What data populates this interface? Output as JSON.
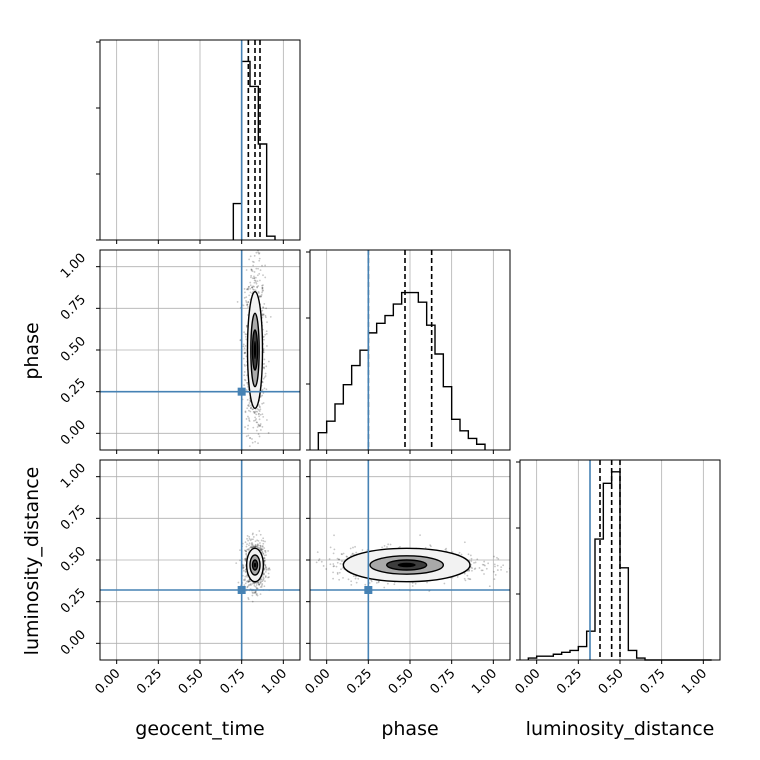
{
  "colors": {
    "truth": "#4682b4",
    "hist": "#000000",
    "quantile": "#000000",
    "grid": "#b0b0b0",
    "frame": "#000000",
    "density_dark": "#000000"
  },
  "chart_data": {
    "type": "corner",
    "grid": true,
    "parameters": [
      "geocent_time",
      "phase",
      "luminosity_distance"
    ],
    "axis_labels": {
      "x": [
        "geocent_time",
        "phase",
        "luminosity_distance"
      ],
      "y": [
        "phase",
        "luminosity_distance"
      ]
    },
    "range": [
      -0.1,
      1.1
    ],
    "ticks": [
      0.0,
      0.25,
      0.5,
      0.75,
      1.0
    ],
    "tick_labels": [
      "0.00",
      "0.25",
      "0.50",
      "0.75",
      "1.00"
    ],
    "truths": {
      "geocent_time": 0.75,
      "phase": 0.25,
      "luminosity_distance": 0.32
    },
    "histograms": [
      {
        "parameter": "geocent_time",
        "bin_start": 0.7,
        "bin_width": 0.05,
        "counts": [
          0.19,
          0.93,
          0.8,
          0.5,
          0.02
        ],
        "quantiles": [
          0.79,
          0.83,
          0.86
        ]
      },
      {
        "parameter": "phase",
        "bin_start": -0.05,
        "bin_width": 0.05,
        "counts": [
          0.09,
          0.15,
          0.24,
          0.34,
          0.44,
          0.52,
          0.61,
          0.66,
          0.7,
          0.76,
          0.82,
          0.82,
          0.77,
          0.65,
          0.5,
          0.33,
          0.16,
          0.1,
          0.06,
          0.03
        ],
        "quantiles": [
          0.25,
          0.47,
          0.63
        ]
      },
      {
        "parameter": "luminosity_distance",
        "bin_start": -0.05,
        "bin_width": 0.05,
        "counts": [
          0.01,
          0.02,
          0.02,
          0.03,
          0.04,
          0.05,
          0.07,
          0.15,
          0.63,
          0.92,
          0.98,
          0.48,
          0.05,
          0.01,
          0.0,
          0.0,
          0.0,
          0.0,
          0.0,
          0.0,
          0.0,
          0.0
        ],
        "quantiles": [
          0.38,
          0.45,
          0.5
        ]
      }
    ],
    "contours": [
      {
        "x_param": "geocent_time",
        "y_param": "phase",
        "center": [
          0.83,
          0.5
        ],
        "spread": [
          0.03,
          0.25
        ],
        "levels": [
          {
            "rx": 0.045,
            "ry": 0.35
          },
          {
            "rx": 0.025,
            "ry": 0.22
          },
          {
            "rx": 0.015,
            "ry": 0.12
          }
        ]
      },
      {
        "x_param": "geocent_time",
        "y_param": "luminosity_distance",
        "center": [
          0.83,
          0.47
        ],
        "spread": [
          0.03,
          0.07
        ],
        "levels": [
          {
            "rx": 0.05,
            "ry": 0.1
          },
          {
            "rx": 0.03,
            "ry": 0.06
          },
          {
            "rx": 0.015,
            "ry": 0.03
          }
        ]
      },
      {
        "x_param": "phase",
        "y_param": "luminosity_distance",
        "center": [
          0.48,
          0.47
        ],
        "spread": [
          0.22,
          0.05
        ],
        "levels": [
          {
            "rx": 0.38,
            "ry": 0.1
          },
          {
            "rx": 0.22,
            "ry": 0.055
          },
          {
            "rx": 0.12,
            "ry": 0.03
          }
        ]
      }
    ]
  }
}
